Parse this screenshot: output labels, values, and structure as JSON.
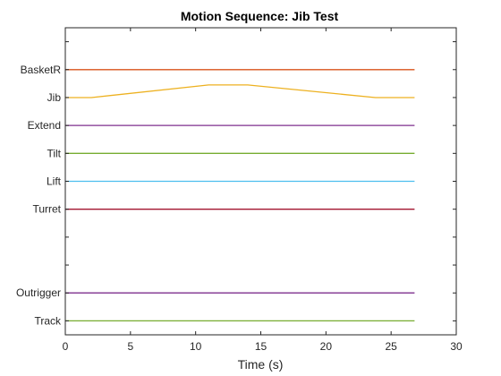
{
  "chart_data": {
    "type": "line",
    "title": "Motion Sequence: Jib Test",
    "xlabel": "Time (s)",
    "ylabel": "",
    "xlim": [
      0,
      30
    ],
    "xticks": [
      0,
      5,
      10,
      15,
      20,
      25,
      30
    ],
    "ylim": [
      0.5,
      11.5
    ],
    "grid": false,
    "rows": [
      {
        "pos": 11,
        "label": "",
        "visible": false
      },
      {
        "pos": 10,
        "label": "BasketR"
      },
      {
        "pos": 9,
        "label": "Jib"
      },
      {
        "pos": 8,
        "label": "Extend"
      },
      {
        "pos": 7,
        "label": "Tilt"
      },
      {
        "pos": 6,
        "label": "Lift"
      },
      {
        "pos": 5,
        "label": "Turret"
      },
      {
        "pos": 4,
        "label": "",
        "visible": false
      },
      {
        "pos": 3,
        "label": "",
        "visible": false
      },
      {
        "pos": 2,
        "label": "Outrigger"
      },
      {
        "pos": 1,
        "label": "Track"
      }
    ],
    "series": [
      {
        "name": "BasketR",
        "color": "#D95319",
        "points": [
          [
            0,
            10
          ],
          [
            26.8,
            10
          ]
        ]
      },
      {
        "name": "Jib",
        "color": "#EDB120",
        "points": [
          [
            0,
            9
          ],
          [
            2,
            9
          ],
          [
            11,
            9.45
          ],
          [
            14,
            9.45
          ],
          [
            23.8,
            9
          ],
          [
            26.8,
            9
          ]
        ]
      },
      {
        "name": "Extend",
        "color": "#7E2F8E",
        "points": [
          [
            0,
            8
          ],
          [
            26.8,
            8
          ]
        ]
      },
      {
        "name": "Tilt",
        "color": "#77AC30",
        "points": [
          [
            0,
            7
          ],
          [
            26.8,
            7
          ]
        ]
      },
      {
        "name": "Lift",
        "color": "#4DBEEE",
        "points": [
          [
            0,
            6
          ],
          [
            26.8,
            6
          ]
        ]
      },
      {
        "name": "Turret",
        "color": "#A2142F",
        "points": [
          [
            0,
            5
          ],
          [
            26.8,
            5
          ]
        ]
      },
      {
        "name": "Outrigger",
        "color": "#7E2F8E",
        "points": [
          [
            0,
            2
          ],
          [
            26.8,
            2
          ]
        ]
      },
      {
        "name": "Track",
        "color": "#77AC30",
        "points": [
          [
            0,
            1
          ],
          [
            26.8,
            1
          ]
        ]
      }
    ]
  }
}
